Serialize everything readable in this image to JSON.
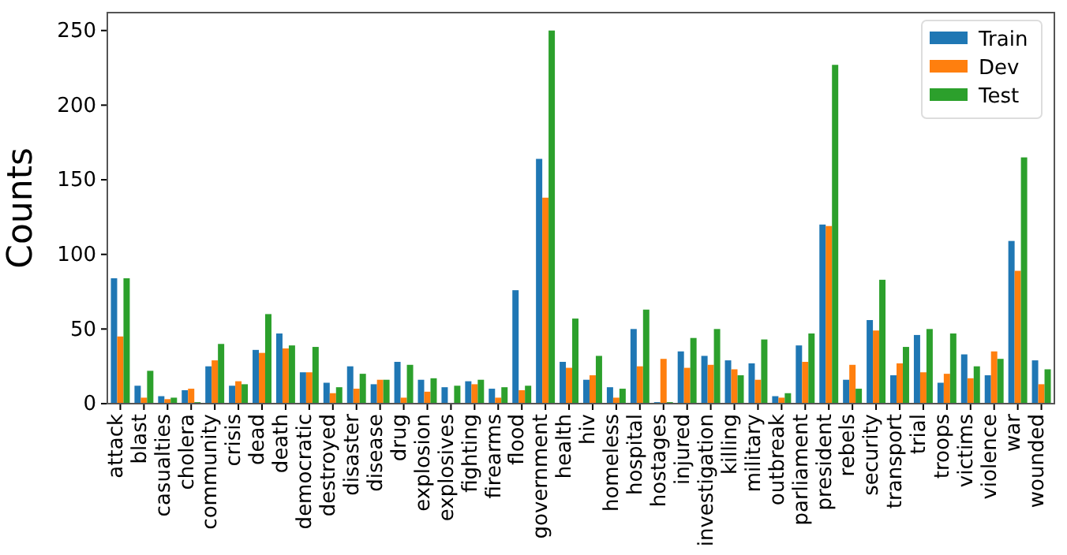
{
  "chart_data": {
    "type": "bar",
    "ylabel": "Counts",
    "categories": [
      "attack",
      "blast",
      "casualties",
      "cholera",
      "community",
      "crisis",
      "dead",
      "death",
      "democratic",
      "destroyed",
      "disaster",
      "disease",
      "drug",
      "explosion",
      "explosives",
      "fighting",
      "firearms",
      "flood",
      "government",
      "health",
      "hiv",
      "homeless",
      "hospital",
      "hostages",
      "injured",
      "investigation",
      "killing",
      "military",
      "outbreak",
      "parliament",
      "president",
      "rebels",
      "security",
      "transport",
      "trial",
      "troops",
      "victims",
      "violence",
      "war",
      "wounded"
    ],
    "series": [
      {
        "name": "Train",
        "color": "#1f77b4",
        "values": [
          84,
          12,
          5,
          9,
          25,
          12,
          36,
          47,
          21,
          14,
          25,
          13,
          28,
          16,
          11,
          15,
          10,
          76,
          164,
          28,
          16,
          11,
          50,
          1,
          35,
          32,
          29,
          27,
          5,
          39,
          120,
          16,
          56,
          19,
          46,
          14,
          33,
          19,
          109,
          29
        ]
      },
      {
        "name": "Dev",
        "color": "#ff7f0e",
        "values": [
          45,
          4,
          3,
          10,
          29,
          15,
          34,
          37,
          21,
          7,
          10,
          16,
          4,
          8,
          0,
          13,
          4,
          9,
          138,
          24,
          19,
          4,
          25,
          30,
          24,
          26,
          23,
          16,
          4,
          28,
          119,
          26,
          49,
          27,
          21,
          20,
          17,
          35,
          89,
          13
        ]
      },
      {
        "name": "Test",
        "color": "#2ca02c",
        "values": [
          84,
          22,
          4,
          1,
          40,
          13,
          60,
          39,
          38,
          11,
          20,
          16,
          26,
          17,
          12,
          16,
          11,
          12,
          250,
          57,
          32,
          10,
          63,
          1,
          44,
          50,
          19,
          43,
          7,
          47,
          227,
          10,
          83,
          38,
          50,
          47,
          25,
          30,
          165,
          23
        ]
      }
    ],
    "ylim": [
      0,
      262
    ],
    "yticks": [
      0,
      50,
      100,
      150,
      200,
      250
    ],
    "grid": false,
    "legend": "top right"
  }
}
